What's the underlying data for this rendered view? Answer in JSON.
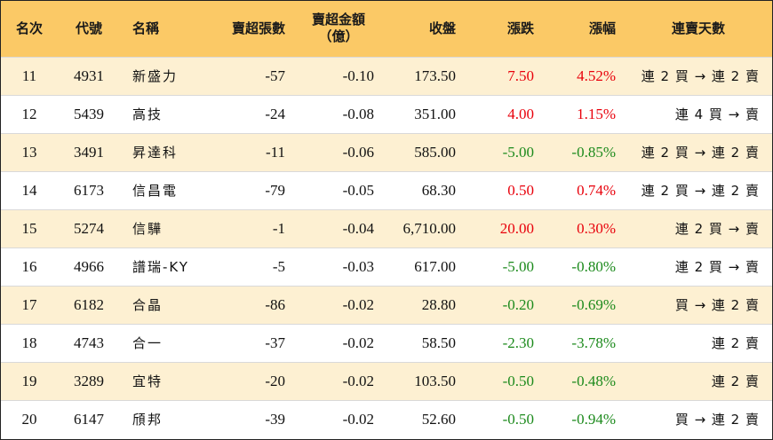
{
  "table": {
    "headers": {
      "rank": "名次",
      "code": "代號",
      "name": "名稱",
      "sell_lots": "賣超張數",
      "sell_amount_1": "賣超金額",
      "sell_amount_2": "（億）",
      "close": "收盤",
      "change": "漲跌",
      "pct": "漲幅",
      "streak": "連賣天數"
    },
    "rows": [
      {
        "rank": "11",
        "code": "4931",
        "name": "新盛力",
        "sell_lots": "-57",
        "sell_amount": "-0.10",
        "close": "173.50",
        "change": "7.50",
        "pct": "4.52%",
        "streak": "連 2 買 → 連 2 賣",
        "trend": "up"
      },
      {
        "rank": "12",
        "code": "5439",
        "name": "高技",
        "sell_lots": "-24",
        "sell_amount": "-0.08",
        "close": "351.00",
        "change": "4.00",
        "pct": "1.15%",
        "streak": "連 4 買 → 賣",
        "trend": "up"
      },
      {
        "rank": "13",
        "code": "3491",
        "name": "昇達科",
        "sell_lots": "-11",
        "sell_amount": "-0.06",
        "close": "585.00",
        "change": "-5.00",
        "pct": "-0.85%",
        "streak": "連 2 買 → 連 2 賣",
        "trend": "down"
      },
      {
        "rank": "14",
        "code": "6173",
        "name": "信昌電",
        "sell_lots": "-79",
        "sell_amount": "-0.05",
        "close": "68.30",
        "change": "0.50",
        "pct": "0.74%",
        "streak": "連 2 買 → 連 2 賣",
        "trend": "up"
      },
      {
        "rank": "15",
        "code": "5274",
        "name": "信驊",
        "sell_lots": "-1",
        "sell_amount": "-0.04",
        "close": "6,710.00",
        "change": "20.00",
        "pct": "0.30%",
        "streak": "連 2 買 → 賣",
        "trend": "up"
      },
      {
        "rank": "16",
        "code": "4966",
        "name": "譜瑞-KY",
        "sell_lots": "-5",
        "sell_amount": "-0.03",
        "close": "617.00",
        "change": "-5.00",
        "pct": "-0.80%",
        "streak": "連 2 買 → 賣",
        "trend": "down"
      },
      {
        "rank": "17",
        "code": "6182",
        "name": "合晶",
        "sell_lots": "-86",
        "sell_amount": "-0.02",
        "close": "28.80",
        "change": "-0.20",
        "pct": "-0.69%",
        "streak": "買 → 連 2 賣",
        "trend": "down"
      },
      {
        "rank": "18",
        "code": "4743",
        "name": "合一",
        "sell_lots": "-37",
        "sell_amount": "-0.02",
        "close": "58.50",
        "change": "-2.30",
        "pct": "-3.78%",
        "streak": "連 2 賣",
        "trend": "down"
      },
      {
        "rank": "19",
        "code": "3289",
        "name": "宜特",
        "sell_lots": "-20",
        "sell_amount": "-0.02",
        "close": "103.50",
        "change": "-0.50",
        "pct": "-0.48%",
        "streak": "連 2 賣",
        "trend": "down"
      },
      {
        "rank": "20",
        "code": "6147",
        "name": "頎邦",
        "sell_lots": "-39",
        "sell_amount": "-0.02",
        "close": "52.60",
        "change": "-0.50",
        "pct": "-0.94%",
        "streak": "買 → 連 2 賣",
        "trend": "down"
      }
    ]
  },
  "colors": {
    "header_bg": "#fbc966",
    "odd_row_bg": "#fdf0d2",
    "up": "#e8000b",
    "down": "#1c8a1c"
  }
}
